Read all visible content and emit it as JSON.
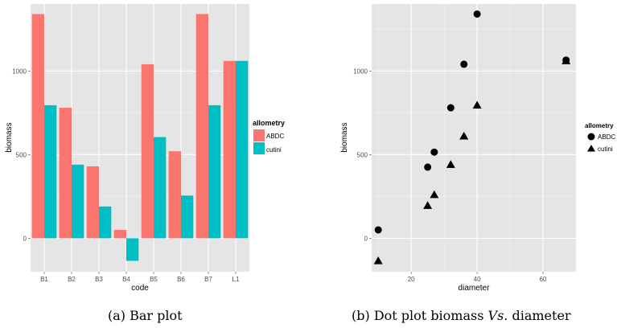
{
  "colors": {
    "panel_bg": "#e5e5e5",
    "grid_major": "#ffffff",
    "grid_minor": "#f2f2f2",
    "tick_text": "#4d4d4d",
    "abdc": "#f8766d",
    "cutini": "#00bfc4",
    "points": "#000000"
  },
  "chart_data": [
    {
      "type": "bar",
      "panel": "a",
      "xlabel": "code",
      "ylabel": "biomass",
      "categories": [
        "B1",
        "B2",
        "B3",
        "B4",
        "B5",
        "B6",
        "B7",
        "L1"
      ],
      "series": [
        {
          "name": "ABDC",
          "color": "#f8766d",
          "values": [
            1340,
            780,
            430,
            50,
            1040,
            520,
            1340,
            1060
          ]
        },
        {
          "name": "cutini",
          "color": "#00bfc4",
          "values": [
            795,
            440,
            190,
            -135,
            605,
            255,
            795,
            1060
          ]
        }
      ],
      "ylim": [
        -200,
        1400
      ],
      "yticks": [
        0,
        500,
        1000
      ],
      "ytick_labels": [
        "0",
        "500",
        "1000"
      ],
      "grid": true,
      "legend": {
        "title": "allometry",
        "position": "right",
        "labels": [
          "ABDC",
          "cutini"
        ]
      }
    },
    {
      "type": "scatter",
      "panel": "b",
      "xlabel": "diameter",
      "ylabel": "biomass",
      "xlim": [
        8,
        70
      ],
      "ylim": [
        -200,
        1400
      ],
      "xticks": [
        20,
        40,
        60
      ],
      "xtick_labels": [
        "20",
        "40",
        "60"
      ],
      "yticks": [
        0,
        500,
        1000
      ],
      "ytick_labels": [
        "0",
        "500",
        "1000"
      ],
      "grid": true,
      "series": [
        {
          "name": "ABDC",
          "marker": "circle",
          "points": [
            [
              10,
              50
            ],
            [
              25,
              425
            ],
            [
              27,
              515
            ],
            [
              32,
              780
            ],
            [
              36,
              1040
            ],
            [
              40,
              1340
            ],
            [
              67,
              1065
            ]
          ]
        },
        {
          "name": "cutini",
          "marker": "triangle",
          "points": [
            [
              10,
              -135
            ],
            [
              25,
              195
            ],
            [
              27,
              260
            ],
            [
              32,
              440
            ],
            [
              36,
              610
            ],
            [
              40,
              795
            ],
            [
              67,
              1060
            ]
          ]
        }
      ],
      "legend": {
        "title": "allometry",
        "position": "right",
        "labels": [
          "ABDC",
          "cutini"
        ]
      }
    }
  ],
  "captions": {
    "a_label": "(a)",
    "a_text": "Bar plot",
    "b_label": "(b)",
    "b_text_1": "Dot plot biomass",
    "b_vs": "Vs.",
    "b_text_2": "diameter"
  }
}
